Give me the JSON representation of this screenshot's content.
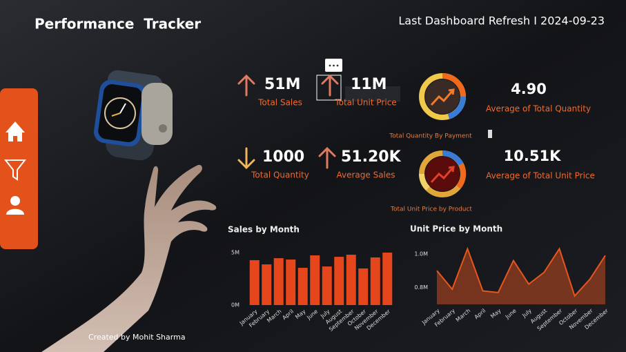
{
  "header": {
    "title": "Performance  Tracker",
    "refresh": "Last Dashboard Refresh I 2024-09-23"
  },
  "kpis": [
    {
      "value": "51M",
      "label": "Total Sales",
      "trend": "up"
    },
    {
      "value": "11M",
      "label": "Total Unit Price",
      "trend": "up"
    },
    {
      "value": "1000",
      "label": "Total Quantity",
      "trend": "down"
    },
    {
      "value": "51.20K",
      "label": "Average Sales",
      "trend": "up"
    }
  ],
  "stats": [
    {
      "value": "4.90",
      "label": "Average of Total Quantity"
    },
    {
      "value": "10.51K",
      "label": "Average of Total Unit Price"
    }
  ],
  "donuts": [
    {
      "label": "Total Quantity By Payment"
    },
    {
      "label": "Total Unit Price by Product"
    }
  ],
  "footer": {
    "credit": "Created by Mohit Sharma"
  },
  "chart_data": [
    {
      "type": "bar",
      "title": "Sales by Month",
      "categories": [
        "January",
        "February",
        "March",
        "April",
        "May",
        "June",
        "July",
        "August",
        "September",
        "October",
        "November",
        "December"
      ],
      "values": [
        4.28,
        3.88,
        4.47,
        4.34,
        3.55,
        4.74,
        3.68,
        4.6,
        4.8,
        3.49,
        4.54,
        5.0
      ],
      "color": "#e5461b",
      "ylim": [
        0,
        5
      ],
      "yticks": [
        {
          "value": 0,
          "label": "0M"
        },
        {
          "value": 5,
          "label": "5M"
        }
      ]
    },
    {
      "type": "area",
      "title": "Unit Price by Month",
      "categories": [
        "January",
        "February",
        "March",
        "April",
        "May",
        "June",
        "July",
        "August",
        "September",
        "October",
        "November",
        "December"
      ],
      "values": [
        0.9,
        0.79,
        1.03,
        0.78,
        0.77,
        0.96,
        0.82,
        0.89,
        1.03,
        0.75,
        0.85,
        0.99
      ],
      "color": "#e8561e",
      "ylim": [
        0.7,
        1.04
      ],
      "yticks": [
        {
          "value": 0.8,
          "label": "0.8M"
        },
        {
          "value": 1,
          "label": "1.0M"
        }
      ]
    }
  ]
}
